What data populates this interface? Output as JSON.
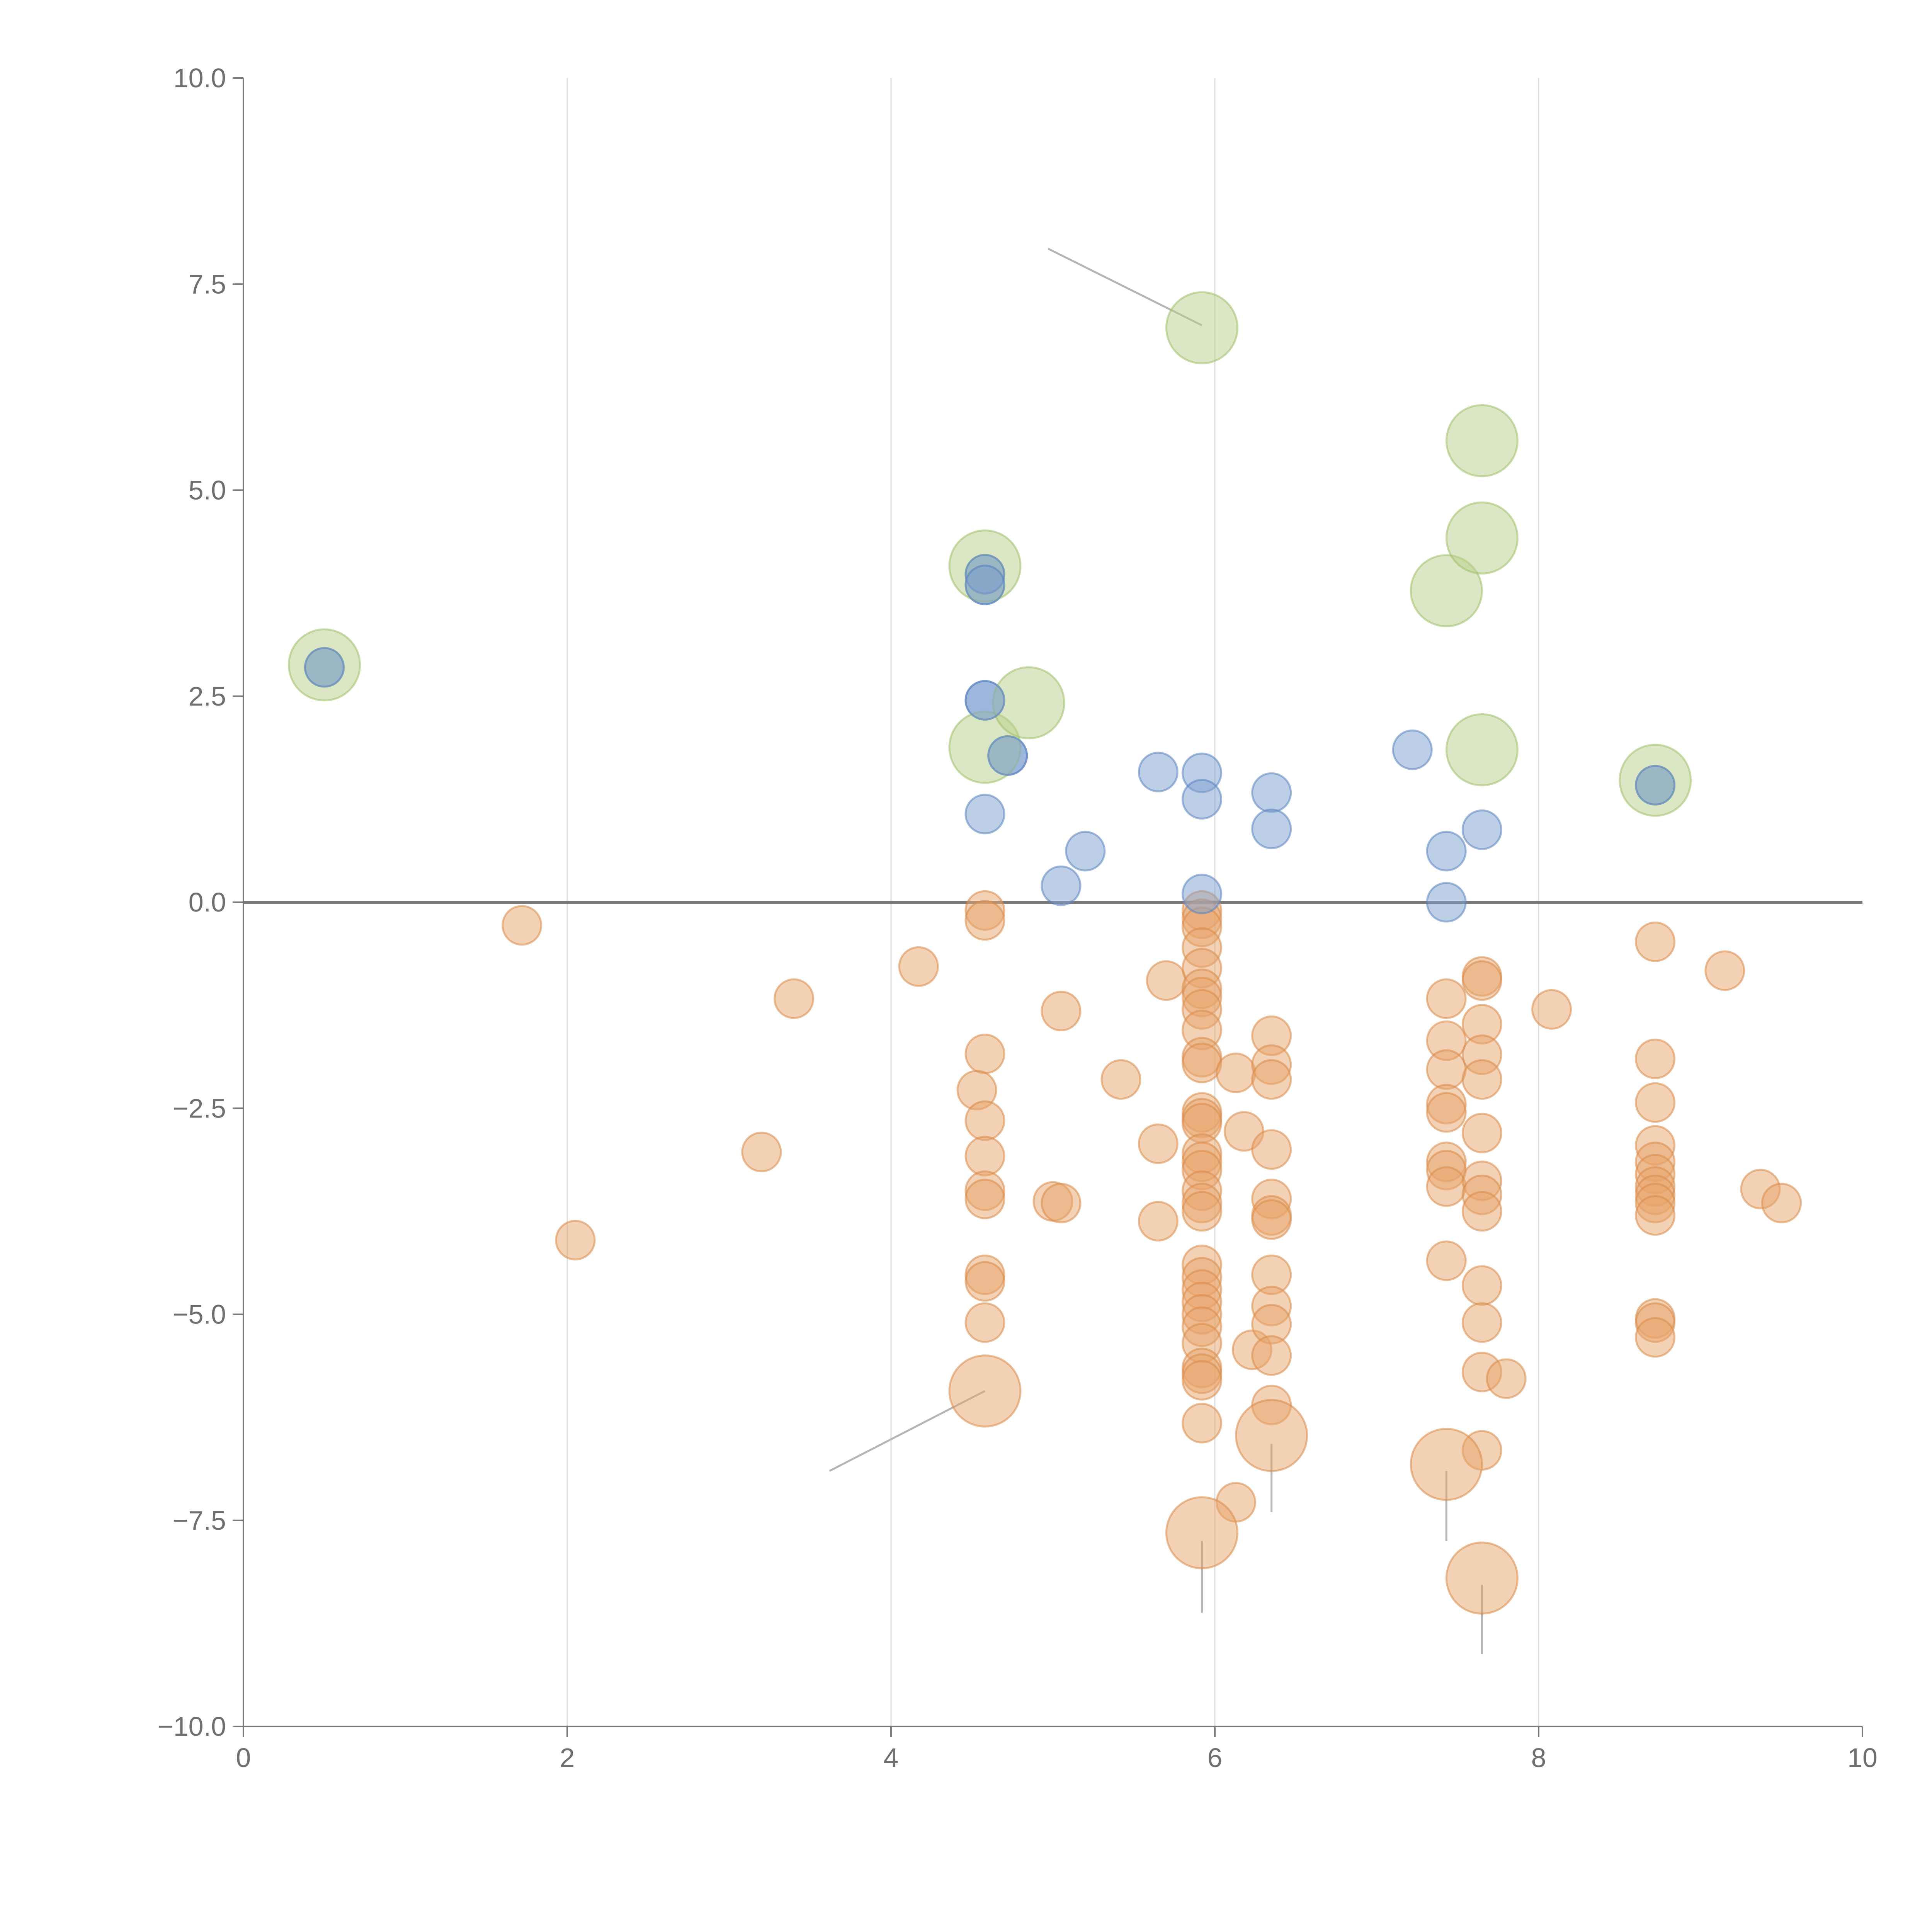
{
  "chart_data": {
    "type": "scatter",
    "title": "",
    "xlabel": "",
    "ylabel": "",
    "xlim": [
      0,
      10
    ],
    "ylim": [
      -10,
      10
    ],
    "x_ticks": [
      0,
      2,
      4,
      6,
      8,
      10
    ],
    "y_ticks": [
      10.0,
      7.5,
      5.0,
      2.5,
      0.0,
      -2.5,
      -5.0,
      -7.5,
      -10.0
    ],
    "x_tick_labels": [
      "0",
      "2",
      "4",
      "6",
      "8",
      "10"
    ],
    "y_tick_labels": [
      "10.0",
      "7.5",
      "5.0",
      "2.5",
      "0.0",
      "−2.5",
      "−5.0",
      "−7.5",
      "−10.0"
    ],
    "grid": "vertical",
    "reference_line_y": 0,
    "legend": "none",
    "series": [
      {
        "name": "positive",
        "color": "#7b9fd0",
        "stroke": "#5a84c0",
        "size": "small",
        "points": [
          [
            0.5,
            2.85
          ],
          [
            4.58,
            3.98
          ],
          [
            4.58,
            3.85
          ],
          [
            4.58,
            2.45
          ],
          [
            4.72,
            1.78
          ],
          [
            4.58,
            1.07
          ],
          [
            5.05,
            0.2
          ],
          [
            5.2,
            0.62
          ],
          [
            5.65,
            1.58
          ],
          [
            5.92,
            1.57
          ],
          [
            5.92,
            1.25
          ],
          [
            5.92,
            0.1
          ],
          [
            6.35,
            1.33
          ],
          [
            6.35,
            0.89
          ],
          [
            7.22,
            1.85
          ],
          [
            7.43,
            0.62
          ],
          [
            7.43,
            0.0
          ],
          [
            7.65,
            0.88
          ],
          [
            8.72,
            1.42
          ]
        ]
      },
      {
        "name": "negative",
        "color": "#e8a46a",
        "stroke": "#d98a48",
        "size": "small",
        "points": [
          [
            1.72,
            -0.28
          ],
          [
            2.05,
            -4.1
          ],
          [
            3.2,
            -3.03
          ],
          [
            3.4,
            -1.17
          ],
          [
            4.17,
            -0.78
          ],
          [
            4.58,
            -0.1
          ],
          [
            4.58,
            -0.22
          ],
          [
            4.58,
            -1.84
          ],
          [
            4.53,
            -2.28
          ],
          [
            4.58,
            -2.65
          ],
          [
            4.58,
            -3.08
          ],
          [
            4.58,
            -3.5
          ],
          [
            4.58,
            -3.6
          ],
          [
            4.58,
            -4.52
          ],
          [
            4.58,
            -4.6
          ],
          [
            4.58,
            -5.1
          ],
          [
            5.0,
            -3.63
          ],
          [
            5.05,
            -3.65
          ],
          [
            5.05,
            -1.32
          ],
          [
            5.42,
            -2.15
          ],
          [
            5.65,
            -2.93
          ],
          [
            5.65,
            -3.87
          ],
          [
            5.7,
            -0.95
          ],
          [
            5.92,
            -0.1
          ],
          [
            5.92,
            -0.2
          ],
          [
            5.92,
            -0.3
          ],
          [
            5.92,
            -0.55
          ],
          [
            5.92,
            -0.8
          ],
          [
            5.92,
            -1.05
          ],
          [
            5.92,
            -1.15
          ],
          [
            5.92,
            -1.3
          ],
          [
            5.92,
            -1.55
          ],
          [
            5.92,
            -1.88
          ],
          [
            5.92,
            -1.95
          ],
          [
            5.92,
            -2.55
          ],
          [
            5.92,
            -2.62
          ],
          [
            5.92,
            -2.68
          ],
          [
            5.92,
            -3.05
          ],
          [
            5.92,
            -3.15
          ],
          [
            5.92,
            -3.25
          ],
          [
            5.92,
            -3.5
          ],
          [
            5.92,
            -3.65
          ],
          [
            5.92,
            -3.75
          ],
          [
            5.92,
            -4.4
          ],
          [
            5.92,
            -4.55
          ],
          [
            5.92,
            -4.7
          ],
          [
            5.92,
            -4.85
          ],
          [
            5.92,
            -5.0
          ],
          [
            5.92,
            -5.15
          ],
          [
            5.92,
            -5.35
          ],
          [
            5.92,
            -5.65
          ],
          [
            5.92,
            -5.72
          ],
          [
            5.92,
            -5.8
          ],
          [
            5.92,
            -6.32
          ],
          [
            6.13,
            -2.07
          ],
          [
            6.18,
            -2.78
          ],
          [
            6.23,
            -5.43
          ],
          [
            6.13,
            -7.28
          ],
          [
            6.35,
            -1.62
          ],
          [
            6.35,
            -1.97
          ],
          [
            6.35,
            -2.15
          ],
          [
            6.35,
            -3.0
          ],
          [
            6.35,
            -3.6
          ],
          [
            6.35,
            -3.8
          ],
          [
            6.35,
            -3.85
          ],
          [
            6.35,
            -4.52
          ],
          [
            6.35,
            -4.9
          ],
          [
            6.35,
            -5.12
          ],
          [
            6.35,
            -5.5
          ],
          [
            6.35,
            -6.1
          ],
          [
            7.43,
            -1.17
          ],
          [
            7.43,
            -1.68
          ],
          [
            7.43,
            -2.03
          ],
          [
            7.43,
            -2.45
          ],
          [
            7.43,
            -2.55
          ],
          [
            7.43,
            -3.15
          ],
          [
            7.43,
            -3.25
          ],
          [
            7.43,
            -3.45
          ],
          [
            7.43,
            -4.35
          ],
          [
            7.65,
            -0.9
          ],
          [
            7.65,
            -0.95
          ],
          [
            7.65,
            -1.48
          ],
          [
            7.65,
            -1.85
          ],
          [
            7.65,
            -2.15
          ],
          [
            7.65,
            -2.8
          ],
          [
            7.65,
            -3.38
          ],
          [
            7.65,
            -3.55
          ],
          [
            7.65,
            -3.75
          ],
          [
            7.65,
            -4.65
          ],
          [
            7.65,
            -5.1
          ],
          [
            7.65,
            -5.7
          ],
          [
            7.65,
            -6.65
          ],
          [
            7.8,
            -5.78
          ],
          [
            8.08,
            -1.3
          ],
          [
            8.72,
            -0.48
          ],
          [
            8.72,
            -1.9
          ],
          [
            8.72,
            -2.43
          ],
          [
            8.72,
            -2.95
          ],
          [
            8.72,
            -3.15
          ],
          [
            8.72,
            -3.3
          ],
          [
            8.72,
            -3.45
          ],
          [
            8.72,
            -3.55
          ],
          [
            8.72,
            -3.65
          ],
          [
            8.72,
            -3.8
          ],
          [
            8.72,
            -5.05
          ],
          [
            8.72,
            -5.1
          ],
          [
            8.72,
            -5.28
          ],
          [
            9.15,
            -0.83
          ],
          [
            9.37,
            -3.48
          ],
          [
            9.5,
            -3.65
          ]
        ]
      },
      {
        "name": "highlighted-positive",
        "color": "#b7d08a",
        "stroke": "#9cbf68",
        "size": "large",
        "points": [
          [
            0.5,
            2.88
          ],
          [
            4.58,
            4.08
          ],
          [
            4.58,
            1.88
          ],
          [
            4.85,
            2.42
          ],
          [
            5.92,
            6.97
          ],
          [
            7.43,
            3.78
          ],
          [
            7.65,
            5.6
          ],
          [
            7.65,
            4.42
          ],
          [
            7.65,
            1.85
          ],
          [
            8.72,
            1.48
          ]
        ]
      },
      {
        "name": "highlighted-negative",
        "color": "#e8a46a",
        "stroke": "#d98a48",
        "size": "large",
        "points": [
          [
            4.58,
            -5.93
          ],
          [
            5.92,
            -7.65
          ],
          [
            6.35,
            -6.47
          ],
          [
            7.43,
            -6.82
          ],
          [
            7.65,
            -8.2
          ]
        ]
      }
    ],
    "annotation_leaders": [
      {
        "from": [
          5.92,
          7.0
        ],
        "to": [
          4.97,
          7.93
        ],
        "style": "gray"
      },
      {
        "from": [
          4.58,
          -5.93
        ],
        "to": [
          3.62,
          -6.9
        ],
        "style": "gray"
      },
      {
        "from": [
          5.92,
          -7.75
        ],
        "to": [
          5.92,
          -8.62
        ],
        "style": "gray"
      },
      {
        "from": [
          6.35,
          -6.57
        ],
        "to": [
          6.35,
          -7.4
        ],
        "style": "gray"
      },
      {
        "from": [
          7.43,
          -6.9
        ],
        "to": [
          7.43,
          -7.75
        ],
        "style": "gray"
      },
      {
        "from": [
          7.65,
          -8.28
        ],
        "to": [
          7.65,
          -9.12
        ],
        "style": "gray"
      },
      {
        "from": [
          4.58,
          4.15
        ],
        "to": [
          4.68,
          4.35
        ],
        "style": "light"
      },
      {
        "from": [
          4.85,
          2.42
        ],
        "to": [
          4.98,
          2.55
        ],
        "style": "light"
      },
      {
        "from": [
          7.43,
          3.82
        ],
        "to": [
          7.37,
          4.1
        ],
        "style": "light"
      },
      {
        "from": [
          7.65,
          5.68
        ],
        "to": [
          7.73,
          5.92
        ],
        "style": "light"
      },
      {
        "from": [
          7.65,
          4.45
        ],
        "to": [
          7.82,
          4.48
        ],
        "style": "light"
      },
      {
        "from": [
          7.65,
          1.95
        ],
        "to": [
          7.67,
          2.3
        ],
        "style": "light"
      },
      {
        "from": [
          8.72,
          1.55
        ],
        "to": [
          8.82,
          1.78
        ],
        "style": "light"
      }
    ]
  }
}
